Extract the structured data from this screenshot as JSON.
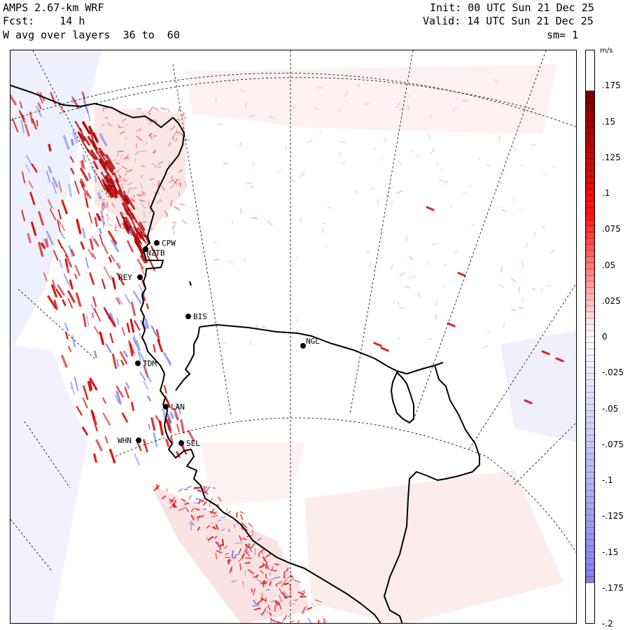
{
  "header": {
    "model": "AMPS 2.67-km WRF",
    "forecast_label": "Fcst:",
    "forecast_hours": "14 h",
    "field": "W avg over layers  36 to  60",
    "init": "Init: 00 UTC Sun 21 Dec 25",
    "valid": "Valid: 14 UTC Sun 21 Dec 25",
    "smoothing": "sm= 1"
  },
  "colorbar": {
    "unit": "m/s",
    "ticks": [
      ".175",
      ".15",
      ".125",
      ".1",
      ".075",
      ".05",
      ".025",
      "0",
      "-.025",
      "-.05",
      "-.075",
      "-.1",
      "-.125",
      "-.15",
      "-.175",
      "-.2"
    ],
    "tick_values": [
      0.175,
      0.15,
      0.125,
      0.1,
      0.075,
      0.05,
      0.025,
      0,
      -0.025,
      -0.05,
      -0.075,
      -0.1,
      -0.125,
      -0.15,
      -0.175,
      -0.2
    ],
    "min": -0.2,
    "max": 0.2,
    "color_positive": "#cc0000",
    "color_negative": "#7777ee"
  },
  "stations": [
    {
      "name": "CPW"
    },
    {
      "name": "NZTB"
    },
    {
      "name": "REY"
    },
    {
      "name": "BIS"
    },
    {
      "name": "NGL"
    },
    {
      "name": "TDM"
    },
    {
      "name": "LAN"
    },
    {
      "name": "WHN"
    },
    {
      "name": "SEL"
    }
  ]
}
